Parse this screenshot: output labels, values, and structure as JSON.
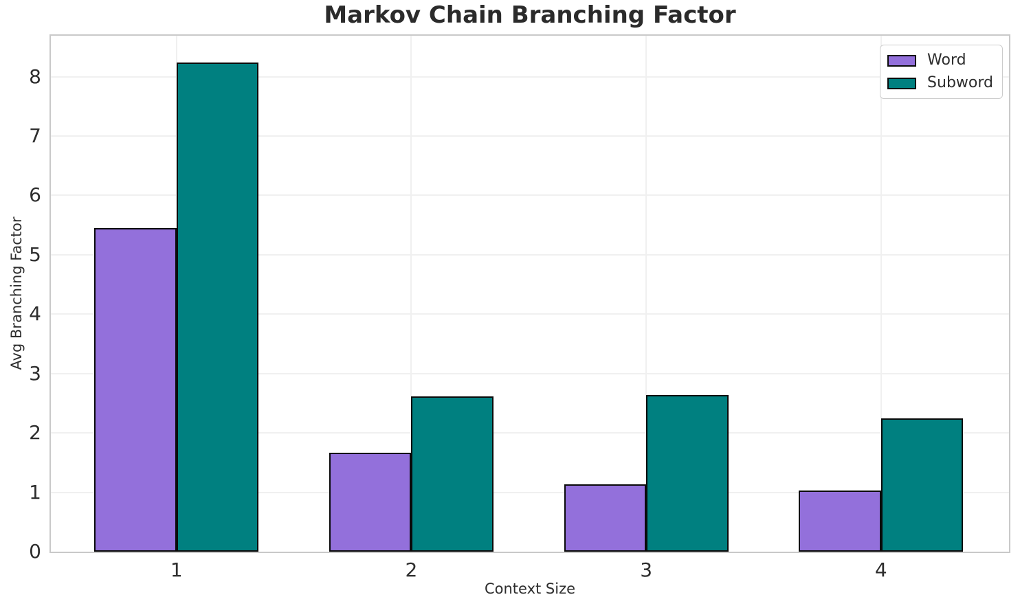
{
  "chart_data": {
    "type": "bar",
    "title": "Markov Chain Branching Factor",
    "xlabel": "Context Size",
    "ylabel": "Avg Branching Factor",
    "categories": [
      "1",
      "2",
      "3",
      "4"
    ],
    "series": [
      {
        "name": "Word",
        "color": "#9370DB",
        "values": [
          5.45,
          1.67,
          1.13,
          1.03
        ]
      },
      {
        "name": "Subword",
        "color": "#008080",
        "values": [
          8.24,
          2.61,
          2.64,
          2.25
        ]
      }
    ],
    "bar_edge_color": "#0a0a0a",
    "ylim": [
      0,
      8.69
    ],
    "yticks": [
      0,
      1,
      2,
      3,
      4,
      5,
      6,
      7,
      8
    ],
    "grid": true,
    "legend_position": "upper-right",
    "colors": {
      "grid": "#f0f0f0",
      "spine": "#c9c9c9",
      "tick_text": "#2e2e2e",
      "title_text": "#2b2b2b"
    }
  }
}
